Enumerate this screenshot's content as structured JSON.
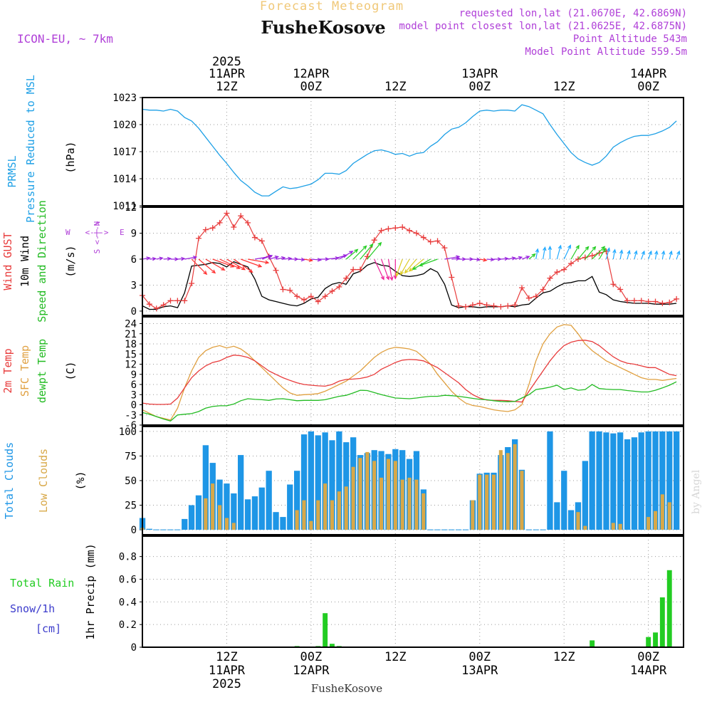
{
  "header": {
    "title": "Forecast Meteogram",
    "location": "FusheKosove",
    "model": "ICON-EU, ~ 7km",
    "requested": "requested lon,lat (21.0670E, 42.6869N)",
    "closest": "model point closest lon,lat (21.0625E, 42.6875N)",
    "altitude": "Point Altitude 543m",
    "model_altitude": "Model Point Altitude 559.5m",
    "credit": "by Angel",
    "footer": "FusheKosove"
  },
  "time_axis": {
    "start_hour_utc": 0,
    "end_hour_utc": 77,
    "year": "2025",
    "top_ticks": [
      {
        "hour": 12,
        "day": "11APR",
        "time": "12Z"
      },
      {
        "hour": 24,
        "day": "12APR",
        "time": "00Z"
      },
      {
        "hour": 36,
        "day": "",
        "time": "12Z"
      },
      {
        "hour": 48,
        "day": "13APR",
        "time": "00Z"
      },
      {
        "hour": 60,
        "day": "",
        "time": "12Z"
      },
      {
        "hour": 72,
        "day": "14APR",
        "time": "00Z"
      }
    ],
    "bottom_ticks": [
      {
        "hour": 12,
        "time": "12Z",
        "day": "11APR"
      },
      {
        "hour": 24,
        "time": "00Z",
        "day": "12APR"
      },
      {
        "hour": 36,
        "time": "12Z",
        "day": ""
      },
      {
        "hour": 48,
        "time": "00Z",
        "day": "13APR"
      },
      {
        "hour": 60,
        "time": "12Z",
        "day": ""
      },
      {
        "hour": 72,
        "time": "00Z",
        "day": "14APR"
      }
    ]
  },
  "colors": {
    "pressure": "#1ea0e6",
    "gust": "#e83c3c",
    "wind": "#000000",
    "temp2m": "#e83c3c",
    "sfc": "#e0a040",
    "dew": "#22bb22",
    "total_cloud": "#1e96e6",
    "low_cloud": "#d8a848",
    "rain": "#22cc22",
    "snow": "#3c3ccc",
    "title_yellow": "#f0c878",
    "info_purple": "#b040d8",
    "grid": "#9a9a9a"
  },
  "chart_data": [
    {
      "type": "line",
      "name": "pressure",
      "title": "PRMSL Pressure Reduced to MSL",
      "label_lines": [
        "PRMSL",
        "Pressure Reduced to MSL"
      ],
      "ylabel": "(hPa)",
      "ylim": [
        1011,
        1023
      ],
      "yticks": [
        1011,
        1014,
        1017,
        1020,
        1023
      ],
      "series": [
        {
          "name": "PRMSL",
          "values": [
            1021.7,
            1021.6,
            1021.6,
            1021.5,
            1021.7,
            1021.5,
            1020.8,
            1020.4,
            1019.6,
            1018.6,
            1017.6,
            1016.6,
            1015.7,
            1014.7,
            1013.8,
            1013.2,
            1012.5,
            1012.1,
            1012.1,
            1012.6,
            1013.1,
            1012.9,
            1013.0,
            1013.2,
            1013.4,
            1013.9,
            1014.6,
            1014.6,
            1014.5,
            1014.9,
            1015.7,
            1016.2,
            1016.7,
            1017.1,
            1017.2,
            1017.0,
            1016.7,
            1016.8,
            1016.5,
            1016.8,
            1016.9,
            1017.6,
            1018.1,
            1018.9,
            1019.5,
            1019.7,
            1020.2,
            1020.9,
            1021.5,
            1021.6,
            1021.5,
            1021.6,
            1021.6,
            1021.5,
            1022.2,
            1022.0,
            1021.6,
            1021.2,
            1020.0,
            1018.9,
            1017.9,
            1016.9,
            1016.2,
            1015.8,
            1015.5,
            1015.8,
            1016.5,
            1017.5,
            1018.0,
            1018.4,
            1018.7,
            1018.8,
            1018.8,
            1019.0,
            1019.3,
            1019.7,
            1020.4
          ]
        }
      ]
    },
    {
      "type": "line",
      "name": "wind",
      "title": "Wind GUST / 10m Wind Speed and Direction",
      "label_lines": [
        {
          "text": "Wind GUST",
          "color": "gust"
        },
        {
          "text": "10m Wind",
          "color": "wind"
        },
        {
          "text": "Speed and Direction",
          "color": "dew"
        }
      ],
      "ylabel": "(m/s)",
      "compass": {
        "n": "N",
        "s": "S",
        "w": "W",
        "e": "E",
        "arrow": "<-|->"
      },
      "ylim": [
        -0.5,
        12
      ],
      "yticks": [
        0,
        3,
        6,
        9,
        12
      ],
      "series": [
        {
          "name": "Wind GUST",
          "values": [
            1.8,
            0.8,
            0.3,
            0.7,
            1.2,
            1.2,
            1.2,
            3.2,
            8.4,
            9.4,
            9.6,
            10.2,
            11.3,
            9.7,
            11.0,
            10.2,
            8.5,
            8.1,
            6.3,
            4.7,
            2.5,
            2.4,
            1.7,
            1.3,
            1.7,
            1.1,
            1.7,
            2.3,
            2.8,
            3.8,
            4.8,
            4.8,
            6.3,
            8.2,
            9.3,
            9.5,
            9.6,
            9.7,
            9.3,
            9.0,
            8.5,
            8.0,
            8.1,
            7.3,
            3.9,
            0.6,
            0.5,
            0.7,
            0.9,
            0.7,
            0.6,
            0.5,
            0.6,
            0.7,
            2.7,
            1.5,
            1.7,
            2.5,
            3.8,
            4.5,
            4.8,
            5.5,
            6.0,
            6.2,
            6.4,
            6.7,
            6.9,
            3.1,
            2.5,
            1.2,
            1.2,
            1.2,
            1.1,
            1.1,
            0.9,
            1.0,
            1.4
          ]
        },
        {
          "name": "10m Wind",
          "values": [
            0.6,
            0.2,
            0.2,
            0.5,
            0.6,
            0.4,
            2.1,
            5.2,
            5.3,
            5.4,
            5.6,
            5.5,
            5.1,
            5.7,
            5.4,
            5.1,
            3.7,
            1.7,
            1.3,
            1.1,
            0.9,
            0.7,
            0.6,
            0.9,
            1.4,
            1.6,
            2.6,
            3.1,
            3.3,
            3.1,
            4.3,
            4.6,
            5.3,
            5.6,
            5.3,
            5.2,
            4.6,
            4.1,
            4.0,
            4.1,
            4.3,
            4.9,
            4.5,
            3.1,
            0.7,
            0.4,
            0.5,
            0.5,
            0.4,
            0.5,
            0.5,
            0.5,
            0.6,
            0.5,
            0.7,
            0.8,
            1.5,
            2.1,
            2.3,
            2.8,
            3.2,
            3.3,
            3.5,
            3.5,
            4.0,
            2.2,
            1.9,
            1.3,
            1.1,
            1.0,
            0.9,
            0.9,
            0.9,
            0.8,
            0.8,
            0.8,
            0.9
          ]
        },
        {
          "name": "Wind direction (deg toward)",
          "values": [
            80,
            85,
            80,
            85,
            90,
            85,
            80,
            135,
            130,
            120,
            110,
            115,
            120,
            125,
            110,
            100,
            80,
            70,
            75,
            80,
            85,
            90,
            95,
            100,
            95,
            90,
            85,
            75,
            60,
            50,
            45,
            40,
            40,
            155,
            160,
            170,
            180,
            200,
            210,
            220,
            230,
            240,
            250,
            80,
            85,
            90,
            90,
            95,
            100,
            95,
            90,
            85,
            80,
            75,
            70,
            50,
            10,
            10,
            0,
            15,
            25,
            30,
            40,
            40,
            45,
            30,
            15,
            10,
            10,
            15,
            15,
            20,
            20,
            10,
            10,
            15,
            20
          ]
        }
      ]
    },
    {
      "type": "line",
      "name": "temperature",
      "title": "2m Temp / SFC Temp / dewpt Temp",
      "label_lines": [
        {
          "text": "2m Temp",
          "color": "temp2m"
        },
        {
          "text": "SFC Temp",
          "color": "sfc"
        },
        {
          "text": "dewpt Temp",
          "color": "dew"
        }
      ],
      "ylabel": "(C)",
      "ylim": [
        -6,
        26
      ],
      "yticks": [
        -6,
        -3,
        0,
        3,
        6,
        9,
        12,
        15,
        18,
        21,
        24
      ],
      "series": [
        {
          "name": "2m Temp",
          "values": [
            0.5,
            0.2,
            0.1,
            0.1,
            0.2,
            2.0,
            5.0,
            8.0,
            10.0,
            11.5,
            12.5,
            13.0,
            14.0,
            14.7,
            14.5,
            14.0,
            13.0,
            11.5,
            10.0,
            9.0,
            8.0,
            7.2,
            6.5,
            6.0,
            5.8,
            5.6,
            5.5,
            6.0,
            7.0,
            7.5,
            7.6,
            7.8,
            8.2,
            9.0,
            10.5,
            11.5,
            12.5,
            13.2,
            13.4,
            13.3,
            13.0,
            12.0,
            11.0,
            9.5,
            8.0,
            6.5,
            4.5,
            3.0,
            2.0,
            1.4,
            1.3,
            1.3,
            1.2,
            1.0,
            0.8,
            4.0,
            7.0,
            10.0,
            13.0,
            15.5,
            17.5,
            18.5,
            19.0,
            19.1,
            18.7,
            17.5,
            15.8,
            14.2,
            13.0,
            12.3,
            12.0,
            11.5,
            11.0,
            11.0,
            10.0,
            9.0,
            8.6
          ]
        },
        {
          "name": "SFC Temp",
          "values": [
            -1.5,
            -2.5,
            -3.5,
            -4.0,
            -4.5,
            -1.0,
            5.0,
            10.0,
            14.0,
            16.0,
            17.0,
            17.5,
            16.8,
            17.3,
            16.5,
            15.0,
            13.0,
            11.0,
            9.0,
            7.0,
            5.0,
            3.5,
            2.8,
            3.0,
            3.1,
            3.3,
            4.0,
            5.0,
            6.0,
            7.0,
            8.5,
            10.0,
            12.0,
            14.0,
            15.5,
            16.5,
            17.0,
            16.8,
            16.5,
            15.8,
            14.0,
            12.0,
            9.0,
            6.5,
            4.0,
            2.0,
            0.5,
            -0.2,
            -0.5,
            -1.0,
            -1.5,
            -1.8,
            -2.0,
            -1.5,
            0.0,
            6.0,
            13.0,
            18.0,
            21.0,
            23.0,
            23.7,
            23.5,
            21.0,
            18.0,
            16.0,
            14.5,
            13.0,
            12.0,
            11.0,
            10.0,
            9.0,
            8.0,
            7.5,
            7.5,
            7.2,
            7.5,
            7.8
          ]
        },
        {
          "name": "dewpt Temp",
          "values": [
            -2.3,
            -2.8,
            -3.5,
            -4.2,
            -4.8,
            -3.0,
            -2.8,
            -2.6,
            -2.0,
            -1.0,
            -0.5,
            -0.3,
            -0.3,
            0.2,
            1.2,
            1.8,
            1.6,
            1.5,
            1.3,
            1.7,
            1.8,
            1.5,
            1.2,
            1.3,
            1.3,
            1.3,
            1.5,
            2.0,
            2.5,
            2.8,
            3.5,
            4.3,
            4.2,
            3.6,
            3.0,
            2.5,
            2.0,
            1.9,
            1.8,
            2.0,
            2.3,
            2.5,
            2.5,
            2.8,
            2.7,
            2.5,
            2.2,
            1.9,
            1.6,
            1.5,
            1.2,
            1.0,
            0.9,
            1.0,
            2.0,
            3.0,
            4.5,
            4.8,
            5.2,
            5.8,
            4.5,
            5.0,
            4.3,
            4.5,
            6.0,
            4.8,
            4.6,
            4.5,
            4.5,
            4.2,
            4.0,
            3.8,
            3.8,
            4.3,
            5.0,
            5.8,
            6.8
          ]
        }
      ]
    },
    {
      "type": "bar",
      "name": "clouds",
      "title": "Total Clouds / Low Clouds",
      "label_lines": [
        {
          "text": "Total Clouds",
          "color": "total_cloud"
        },
        {
          "text": "Low Clouds",
          "color": "low_cloud"
        }
      ],
      "ylabel": "(%)",
      "ylim": [
        -5,
        105
      ],
      "yticks": [
        0,
        25,
        50,
        75,
        100
      ],
      "series": [
        {
          "name": "Total Clouds",
          "values": [
            12,
            1,
            0,
            0,
            0,
            0,
            11,
            25,
            35,
            86,
            68,
            51,
            47,
            37,
            76,
            31,
            34,
            43,
            60,
            18,
            13,
            46,
            60,
            97,
            100,
            96,
            99,
            91,
            100,
            89,
            94,
            76,
            78,
            81,
            80,
            77,
            82,
            81,
            72,
            80,
            41,
            0,
            0,
            0,
            0,
            0,
            0,
            30,
            57,
            58,
            58,
            76,
            84,
            92,
            61,
            0,
            0,
            0,
            100,
            28,
            60,
            20,
            28,
            70,
            100,
            100,
            99,
            98,
            99,
            92,
            94,
            99,
            100,
            100,
            100,
            100,
            100
          ]
        },
        {
          "name": "Low Clouds",
          "values": [
            2,
            0,
            0,
            0,
            0,
            0,
            0,
            0,
            0,
            32,
            47,
            25,
            12,
            7,
            0,
            0,
            0,
            0,
            0,
            0,
            0,
            0,
            20,
            30,
            9,
            30,
            47,
            30,
            39,
            44,
            64,
            73,
            79,
            70,
            53,
            72,
            70,
            51,
            53,
            51,
            37,
            0,
            0,
            0,
            0,
            0,
            0,
            30,
            56,
            56,
            56,
            81,
            78,
            87,
            60,
            0,
            0,
            0,
            0,
            0,
            0,
            0,
            18,
            4,
            0,
            0,
            0,
            7,
            6,
            0,
            0,
            0,
            13,
            19,
            36,
            28,
            0
          ]
        }
      ]
    },
    {
      "type": "bar",
      "name": "precipitation",
      "title": "Total Rain / Snow/1h",
      "label_lines": [
        {
          "text": "Total  Rain",
          "color": "rain"
        },
        {
          "text": "Snow/1h",
          "color": "snow"
        },
        {
          "text": "[cm]",
          "color": "snow"
        }
      ],
      "ylabel": "1hr Precip (mm)",
      "ylim": [
        0,
        0.98
      ],
      "yticks": [
        0,
        0.2,
        0.4,
        0.6,
        0.8
      ],
      "series": [
        {
          "name": "Total Rain",
          "values": [
            0,
            0,
            0,
            0,
            0,
            0,
            0,
            0,
            0,
            0,
            0,
            0,
            0,
            0,
            0,
            0,
            0,
            0,
            0,
            0,
            0,
            0,
            0.01,
            0,
            0,
            0.01,
            0.3,
            0.03,
            0.01,
            0,
            0,
            0,
            0,
            0,
            0,
            0,
            0,
            0,
            0,
            0,
            0,
            0,
            0,
            0,
            0,
            0,
            0,
            0,
            0,
            0,
            0,
            0,
            0,
            0,
            0,
            0,
            0,
            0,
            0,
            0,
            0,
            0,
            0,
            0,
            0.06,
            0,
            0,
            0,
            0,
            0,
            0,
            0,
            0.09,
            0.13,
            0.44,
            0.68,
            0
          ]
        }
      ]
    }
  ]
}
